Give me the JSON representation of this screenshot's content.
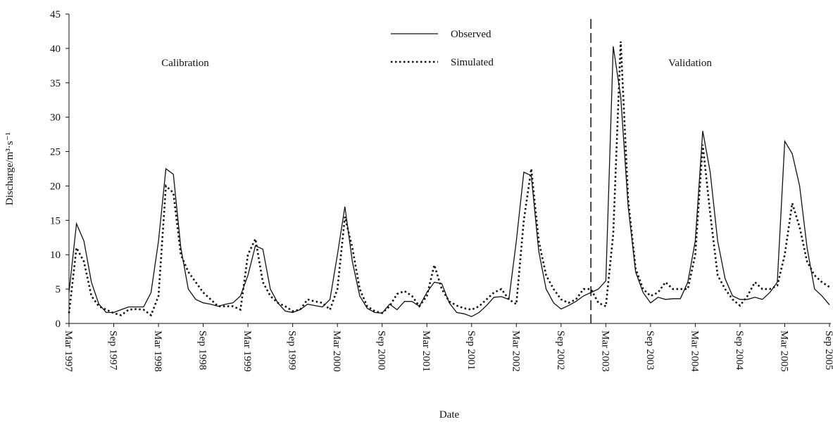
{
  "chart_data": {
    "type": "line",
    "y_label": "Discharge/m³·s⁻¹",
    "x_label": "Date",
    "annotations": [
      "Calibration",
      "Validation"
    ],
    "divider_x": "2003-01",
    "xlim": [
      "1997-03",
      "2005-09"
    ],
    "xticks": [
      {
        "value": "1997-03",
        "label": "Mar 1997"
      },
      {
        "value": "1997-09",
        "label": "Sep 1997"
      },
      {
        "value": "1998-03",
        "label": "Mar 1998"
      },
      {
        "value": "1998-09",
        "label": "Sep 1998"
      },
      {
        "value": "1999-03",
        "label": "Mar 1999"
      },
      {
        "value": "1999-09",
        "label": "Sep 1999"
      },
      {
        "value": "2000-03",
        "label": "Mar 2000"
      },
      {
        "value": "2000-09",
        "label": "Sep 2000"
      },
      {
        "value": "2001-03",
        "label": "Mar 2001"
      },
      {
        "value": "2001-09",
        "label": "Sep 2001"
      },
      {
        "value": "2002-03",
        "label": "Mar 2002"
      },
      {
        "value": "2002-09",
        "label": "Sep 2002"
      },
      {
        "value": "2003-03",
        "label": "Mar 2003"
      },
      {
        "value": "2003-09",
        "label": "Sep 2003"
      },
      {
        "value": "2004-03",
        "label": "Mar 2004"
      },
      {
        "value": "2004-09",
        "label": "Sep 2004"
      },
      {
        "value": "2005-03",
        "label": "Mar 2005"
      },
      {
        "value": "2005-09",
        "label": "Sep 2005"
      }
    ],
    "ylim": [
      0,
      45
    ],
    "yticks": [
      0,
      5,
      10,
      15,
      20,
      25,
      30,
      35,
      40,
      45
    ],
    "x": [
      "1997-03",
      "1997-04",
      "1997-05",
      "1997-06",
      "1997-07",
      "1997-08",
      "1997-09",
      "1997-10",
      "1997-11",
      "1997-12",
      "1998-01",
      "1998-02",
      "1998-03",
      "1998-04",
      "1998-05",
      "1998-06",
      "1998-07",
      "1998-08",
      "1998-09",
      "1998-10",
      "1998-11",
      "1998-12",
      "1999-01",
      "1999-02",
      "1999-03",
      "1999-04",
      "1999-05",
      "1999-06",
      "1999-07",
      "1999-08",
      "1999-09",
      "1999-10",
      "1999-11",
      "1999-12",
      "2000-01",
      "2000-02",
      "2000-03",
      "2000-04",
      "2000-05",
      "2000-06",
      "2000-07",
      "2000-08",
      "2000-09",
      "2000-10",
      "2000-11",
      "2000-12",
      "2001-01",
      "2001-02",
      "2001-03",
      "2001-04",
      "2001-05",
      "2001-06",
      "2001-07",
      "2001-08",
      "2001-09",
      "2001-10",
      "2001-11",
      "2001-12",
      "2002-01",
      "2002-02",
      "2002-03",
      "2002-04",
      "2002-05",
      "2002-06",
      "2002-07",
      "2002-08",
      "2002-09",
      "2002-10",
      "2002-11",
      "2002-12",
      "2003-01",
      "2003-02",
      "2003-03",
      "2003-04",
      "2003-05",
      "2003-06",
      "2003-07",
      "2003-08",
      "2003-09",
      "2003-10",
      "2003-11",
      "2003-12",
      "2004-01",
      "2004-02",
      "2004-03",
      "2004-04",
      "2004-05",
      "2004-06",
      "2004-07",
      "2004-08",
      "2004-09",
      "2004-10",
      "2004-11",
      "2004-12",
      "2005-01",
      "2005-02",
      "2005-03",
      "2005-04",
      "2005-05",
      "2005-06",
      "2005-07",
      "2005-08",
      "2005-09"
    ],
    "series": [
      {
        "name": "Observed",
        "color": "#111111",
        "dash": "solid",
        "values": [
          4.5,
          14.5,
          12,
          6,
          2.8,
          1.6,
          1.6,
          2,
          2.4,
          2.4,
          2.4,
          4.5,
          12,
          22.5,
          21.7,
          11,
          5,
          3.5,
          3,
          2.8,
          2.5,
          2.8,
          3.0,
          4,
          7,
          11.3,
          10.8,
          5,
          3,
          1.8,
          1.6,
          2,
          2.8,
          2.6,
          2.4,
          3.5,
          10,
          17,
          9,
          4,
          2.2,
          1.6,
          1.5,
          2.8,
          2,
          3.2,
          3.2,
          2.5,
          4.5,
          6,
          5.8,
          3,
          1.6,
          1.4,
          1,
          1.6,
          2.6,
          3.8,
          3.9,
          3.5,
          12,
          22,
          21.5,
          10.5,
          5,
          3,
          2.1,
          2.6,
          3.2,
          4,
          4.5,
          5,
          6.2,
          40.3,
          33,
          17,
          7.5,
          4.5,
          3,
          3.8,
          3.5,
          3.6,
          3.6,
          6,
          12,
          28,
          22,
          12,
          6.5,
          4,
          3.5,
          3.5,
          3.8,
          3.5,
          4.5,
          6,
          26.5,
          24.7,
          20,
          11,
          5,
          4,
          2.7
        ]
      },
      {
        "name": "Simulated",
        "color": "#111111",
        "dash": "dotted",
        "values": [
          1.5,
          11,
          9,
          4,
          2.5,
          2,
          1.5,
          1.2,
          2,
          2.1,
          2,
          1.2,
          4,
          20,
          19,
          10,
          7.5,
          6,
          4.5,
          3.5,
          2.5,
          2.5,
          2.5,
          2,
          10,
          12.3,
          6,
          4,
          3,
          2.5,
          1.8,
          2,
          3.5,
          3.2,
          3,
          2,
          5,
          15.5,
          11,
          5,
          2.5,
          1.8,
          1.5,
          2.5,
          4.3,
          4.7,
          4,
          2.5,
          4,
          8.5,
          5,
          3.2,
          2.6,
          2.2,
          2,
          2.5,
          3.5,
          4.5,
          5,
          3.5,
          2.8,
          15,
          22.5,
          12,
          7,
          5,
          3.5,
          3,
          3.5,
          5,
          5,
          3,
          2.5,
          13,
          41,
          18,
          8,
          5,
          4,
          4.5,
          6,
          5,
          5,
          5,
          10,
          26,
          16,
          7,
          5,
          3.5,
          2.6,
          4,
          6,
          5,
          5,
          5.5,
          10,
          17.5,
          14,
          9,
          7,
          6,
          5.3
        ]
      }
    ]
  }
}
